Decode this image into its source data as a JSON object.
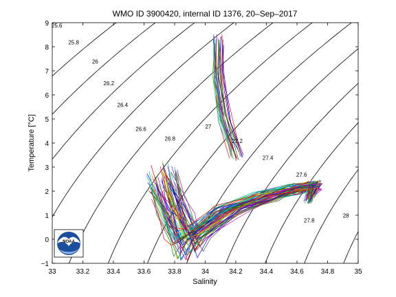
{
  "chart_data": {
    "type": "line",
    "title": "WMO ID 3900420, internal ID 1376, 20–Sep–2017",
    "xlabel": "Salinity",
    "ylabel": "Temperature [°C]",
    "xlim": [
      33,
      35
    ],
    "ylim": [
      -1,
      9
    ],
    "xticks": [
      "33",
      "33.2",
      "33.4",
      "33.6",
      "33.8",
      "34",
      "34.2",
      "34.4",
      "34.6",
      "34.8",
      "35"
    ],
    "yticks": [
      "−1",
      "0",
      "1",
      "2",
      "3",
      "4",
      "5",
      "6",
      "7",
      "8",
      "9"
    ],
    "grid": false,
    "legend": "none",
    "density_contours": [
      {
        "label": "25.6",
        "sigma": 25.6,
        "label_at": [
          33.03,
          8.8
        ]
      },
      {
        "label": "25.8",
        "sigma": 25.8,
        "label_at": [
          33.14,
          8.1
        ]
      },
      {
        "label": "26",
        "sigma": 26.0,
        "label_at": [
          33.28,
          7.3
        ]
      },
      {
        "label": "26.2",
        "sigma": 26.2,
        "label_at": [
          33.37,
          6.4
        ]
      },
      {
        "label": "26.4",
        "sigma": 26.4,
        "label_at": [
          33.46,
          5.5
        ]
      },
      {
        "label": "26.6",
        "sigma": 26.6,
        "label_at": [
          33.58,
          4.5
        ]
      },
      {
        "label": "26.8",
        "sigma": 26.8,
        "label_at": [
          33.77,
          4.1
        ]
      },
      {
        "label": "27",
        "sigma": 27.0,
        "label_at": [
          34.02,
          4.6
        ]
      },
      {
        "label": "27.2",
        "sigma": 27.2,
        "label_at": [
          34.21,
          4.0
        ]
      },
      {
        "label": "27.4",
        "sigma": 27.4,
        "label_at": [
          34.41,
          3.3
        ]
      },
      {
        "label": "27.6",
        "sigma": 27.6,
        "label_at": [
          34.63,
          2.6
        ]
      },
      {
        "label": "27.8",
        "sigma": 27.8,
        "label_at": [
          34.68,
          0.7
        ]
      },
      {
        "label": "28",
        "sigma": 28.0,
        "label_at": [
          34.92,
          0.9
        ]
      }
    ],
    "profile_colors": [
      "#0000ff",
      "#008000",
      "#ff0000",
      "#00bfbf",
      "#bf00bf",
      "#bfbf00",
      "#404040"
    ],
    "profile_shape": {
      "surface_branch": [
        [
          33.72,
          2.4
        ],
        [
          33.78,
          1.2
        ],
        [
          33.84,
          0.4
        ],
        [
          33.88,
          -0.2
        ]
      ],
      "winter_water_min": [
        33.95,
        0.2
      ],
      "deep_branch": [
        [
          34.15,
          1.2
        ],
        [
          34.4,
          1.8
        ],
        [
          34.6,
          2.1
        ],
        [
          34.72,
          2.25
        ],
        [
          34.68,
          1.7
        ]
      ],
      "warm_spike": [
        [
          34.2,
          3.5
        ],
        [
          34.12,
          5.0
        ],
        [
          34.08,
          6.8
        ],
        [
          34.08,
          8.3
        ]
      ],
      "profile_count": 70
    }
  },
  "logo": {
    "text": "NOAA",
    "colors": {
      "outer": "#1b4f9e",
      "inner": "#ffffff"
    }
  }
}
